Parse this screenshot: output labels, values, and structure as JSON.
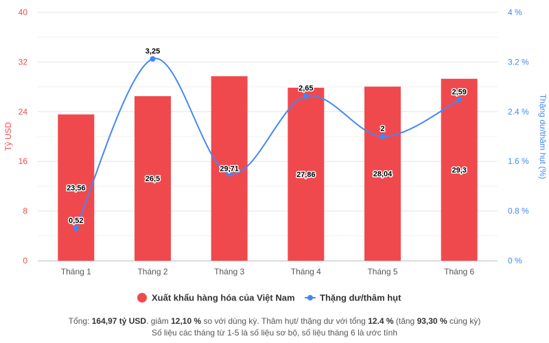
{
  "chart_data": {
    "type": "bar",
    "categories": [
      "Tháng 1",
      "Tháng 2",
      "Tháng 3",
      "Tháng 4",
      "Tháng 5",
      "Tháng 6"
    ],
    "series": [
      {
        "name": "Xuất khẩu hàng hóa của Việt Nam",
        "type": "bar",
        "axis": "left",
        "color": "#f0494d",
        "values": [
          23.56,
          26.5,
          29.71,
          27.86,
          28.04,
          29.3
        ],
        "labels": [
          "23,56",
          "26,5",
          "29,71",
          "27,86",
          "28,04",
          "29,3"
        ]
      },
      {
        "name": "Thặng dư/thâm hụt",
        "type": "line",
        "axis": "right",
        "color": "#4287f5",
        "values": [
          0.52,
          3.25,
          1.4,
          2.65,
          2.0,
          2.59
        ],
        "labels": [
          "0,52",
          "3,25",
          "",
          "2,65",
          "2",
          "2,59"
        ]
      }
    ],
    "left_axis": {
      "label": "Tỷ USD",
      "ylim": [
        0,
        40
      ],
      "ticks": [
        0,
        8,
        16,
        24,
        32,
        40
      ],
      "tick_labels": [
        "0",
        "8",
        "16",
        "24",
        "32",
        "40"
      ],
      "color": "#f0494d"
    },
    "right_axis": {
      "label": "Thặng dư/thâm hụt (%)",
      "ylim": [
        0,
        4
      ],
      "ticks": [
        0,
        0.8,
        1.6,
        2.4,
        3.2,
        4
      ],
      "tick_labels": [
        "0 %",
        "0.8 %",
        "1.6 %",
        "2.4 %",
        "3.2 %",
        "4 %"
      ],
      "color": "#4287f5"
    },
    "grid": true,
    "legend_position": "bottom"
  },
  "footer": {
    "line1": {
      "p1": "Tổng: ",
      "b1": "164,97 tỷ USD",
      "p2": ". giảm ",
      "b2": "12,10 %",
      "p3": " so với dùng kỳ. Thâm hụt/ thặng dư với tổng ",
      "b3": "12.4 %",
      "p4": " (tăng ",
      "b4": "93,30 %",
      "p5": " cùng kỳ)"
    },
    "line2": "Số liệu các tháng từ 1-5 là số liệu sơ bộ, số liệu tháng 6 là ước tính"
  }
}
